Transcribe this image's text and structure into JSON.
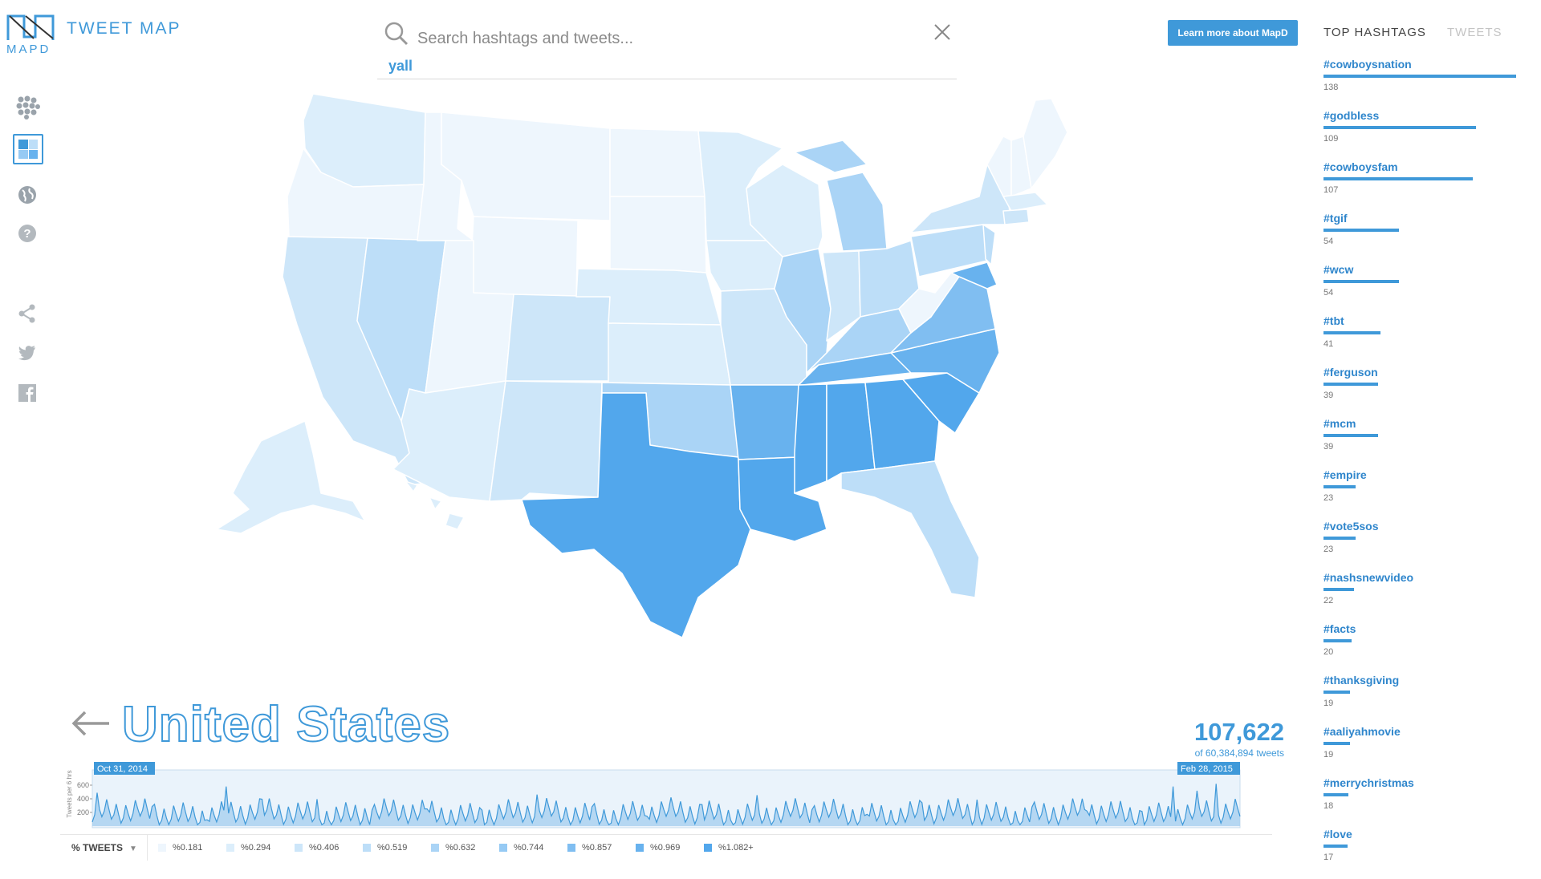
{
  "app": {
    "logo_text": "MAPD",
    "title": "TWEET MAP",
    "learn_more": "Learn more about MapD"
  },
  "toolbar": [
    {
      "name": "points-view-icon",
      "icon": "dots"
    },
    {
      "name": "choropleth-view-icon",
      "icon": "tiles"
    },
    {
      "name": "globe-icon",
      "icon": "globe"
    },
    {
      "name": "help-icon",
      "icon": "question"
    },
    {
      "name": "share-icon",
      "icon": "share"
    },
    {
      "name": "twitter-icon",
      "icon": "twitter"
    },
    {
      "name": "facebook-icon",
      "icon": "facebook"
    }
  ],
  "search": {
    "placeholder": "Search hashtags and tweets...",
    "term": "yall"
  },
  "panel": {
    "tabs": [
      "TOP HASHTAGS",
      "TWEETS"
    ],
    "active_tab": "TOP HASHTAGS",
    "hashtags": [
      {
        "tag": "#cowboysnation",
        "count": "138",
        "value": 138
      },
      {
        "tag": "#godbless",
        "count": "109",
        "value": 109
      },
      {
        "tag": "#cowboysfam",
        "count": "107",
        "value": 107
      },
      {
        "tag": "#tgif",
        "count": "54",
        "value": 54
      },
      {
        "tag": "#wcw",
        "count": "54",
        "value": 54
      },
      {
        "tag": "#tbt",
        "count": "41",
        "value": 41
      },
      {
        "tag": "#ferguson",
        "count": "39",
        "value": 39
      },
      {
        "tag": "#mcm",
        "count": "39",
        "value": 39
      },
      {
        "tag": "#empire",
        "count": "23",
        "value": 23
      },
      {
        "tag": "#vote5sos",
        "count": "23",
        "value": 23
      },
      {
        "tag": "#nashsnewvideo",
        "count": "22",
        "value": 22
      },
      {
        "tag": "#facts",
        "count": "20",
        "value": 20
      },
      {
        "tag": "#thanksgiving",
        "count": "19",
        "value": 19
      },
      {
        "tag": "#aaliyahmovie",
        "count": "19",
        "value": 19
      },
      {
        "tag": "#merrychristmas",
        "count": "18",
        "value": 18
      },
      {
        "tag": "#love",
        "count": "17",
        "value": 17
      }
    ]
  },
  "region": {
    "name": "United States",
    "tweets": "107,622",
    "of_total": "of 60,384,894 tweets"
  },
  "timeline": {
    "start_label": "Oct 31, 2014",
    "end_label": "Feb 28, 2015",
    "y_label": "Tweets per 6 hrs",
    "y_ticks": [
      "600",
      "400",
      "200"
    ],
    "ylim": [
      0,
      800
    ]
  },
  "legend": {
    "selector": "% TWEETS",
    "items": [
      {
        "label": "%0.181",
        "color": "#eef6fd"
      },
      {
        "label": "%0.294",
        "color": "#dceefb"
      },
      {
        "label": "%0.406",
        "color": "#cde6f9"
      },
      {
        "label": "%0.519",
        "color": "#bddef8"
      },
      {
        "label": "%0.632",
        "color": "#aad4f6"
      },
      {
        "label": "%0.744",
        "color": "#96caf4"
      },
      {
        "label": "%0.857",
        "color": "#80bef1"
      },
      {
        "label": "%0.969",
        "color": "#68b2ee"
      },
      {
        "label": "%1.082+",
        "color": "#52a7ec"
      }
    ]
  },
  "colors": {
    "accent": "#3f99d9",
    "map_border": "#ffffff"
  }
}
